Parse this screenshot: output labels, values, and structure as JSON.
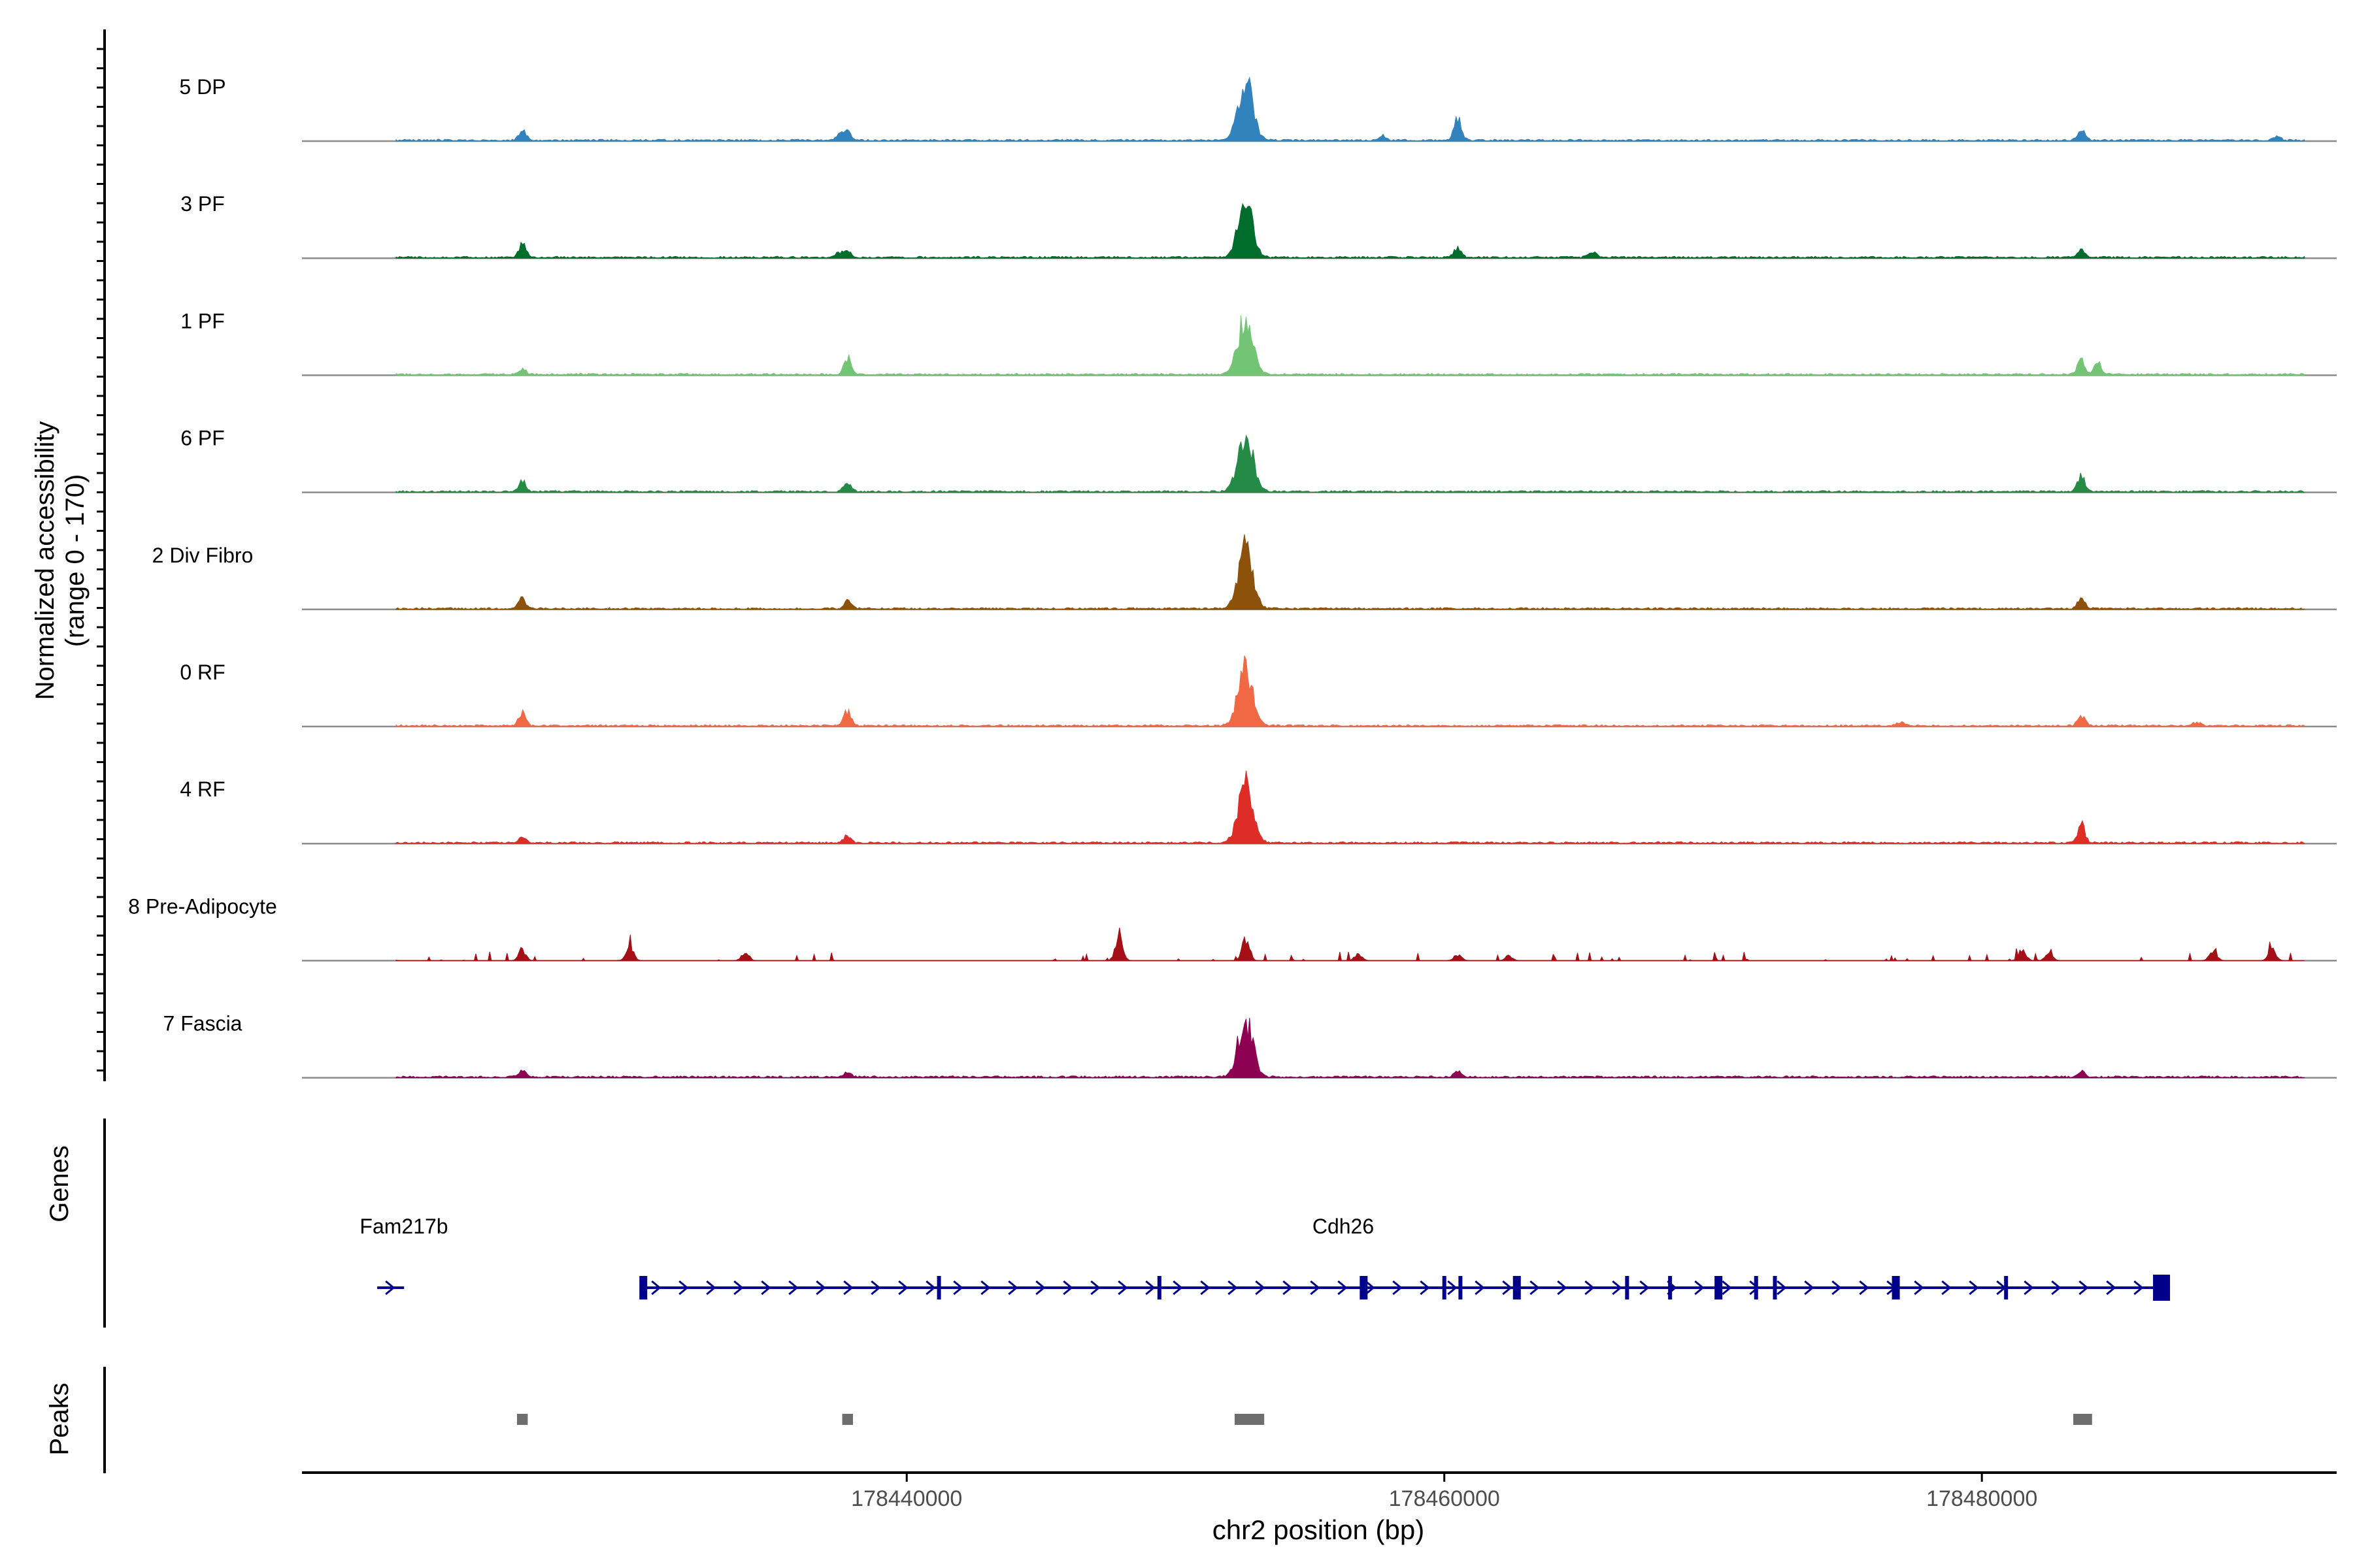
{
  "chart_data": {
    "type": "genome-coverage",
    "title": "",
    "xlabel": "chr2 position (bp)",
    "ylabel": "Normalized accessibility",
    "ylabel_range": "(range 0 - 170)",
    "ylim": [
      0,
      170
    ],
    "xlim": [
      178417500,
      178493200
    ],
    "x_ticks": [
      {
        "value": 178440000,
        "label": "178440000"
      },
      {
        "value": 178460000,
        "label": "178460000"
      },
      {
        "value": 178480000,
        "label": "178480000"
      }
    ],
    "track_start": 178421000,
    "track_end": 178492000,
    "series": [
      {
        "name": "5 DP",
        "color": "#3182BD",
        "peaks": [
          [
            178425700,
            0.2
          ],
          [
            178437500,
            0.1
          ],
          [
            178437800,
            0.14
          ],
          [
            178452600,
            1.0
          ],
          [
            178457700,
            0.08
          ],
          [
            178460500,
            0.38
          ],
          [
            178483700,
            0.2
          ],
          [
            178491000,
            0.06
          ]
        ]
      },
      {
        "name": "3 PF",
        "color": "#006D2C",
        "peaks": [
          [
            178425700,
            0.22
          ],
          [
            178437500,
            0.08
          ],
          [
            178437800,
            0.1
          ],
          [
            178452600,
            1.0
          ],
          [
            178460500,
            0.15
          ],
          [
            178465500,
            0.1
          ],
          [
            178483700,
            0.15
          ]
        ]
      },
      {
        "name": "1 PF",
        "color": "#74C476",
        "peaks": [
          [
            178425700,
            0.1
          ],
          [
            178437800,
            0.3
          ],
          [
            178452600,
            1.0
          ],
          [
            178483700,
            0.25
          ],
          [
            178484300,
            0.2
          ]
        ]
      },
      {
        "name": "6 PF",
        "color": "#238B45",
        "peaks": [
          [
            178425700,
            0.18
          ],
          [
            178437800,
            0.18
          ],
          [
            178452600,
            1.0
          ],
          [
            178483700,
            0.26
          ]
        ]
      },
      {
        "name": "2 Div Fibro",
        "color": "#8C510A",
        "peaks": [
          [
            178425700,
            0.18
          ],
          [
            178437800,
            0.12
          ],
          [
            178452600,
            1.0
          ],
          [
            178483700,
            0.18
          ]
        ]
      },
      {
        "name": "0 RF",
        "color": "#F16944",
        "peaks": [
          [
            178425700,
            0.22
          ],
          [
            178437800,
            0.25
          ],
          [
            178452600,
            1.0
          ],
          [
            178477000,
            0.08
          ],
          [
            178483700,
            0.18
          ],
          [
            178488000,
            0.06
          ]
        ]
      },
      {
        "name": "4 RF",
        "color": "#DE2D26",
        "peaks": [
          [
            178425700,
            0.08
          ],
          [
            178437800,
            0.14
          ],
          [
            178452600,
            1.0
          ],
          [
            178483700,
            0.32
          ]
        ]
      },
      {
        "name": "8 Pre-Adipocyte",
        "color": "#A50F15",
        "peaks": [
          [
            178420700,
            0.14
          ],
          [
            178425700,
            0.18
          ],
          [
            178429700,
            0.25
          ],
          [
            178434000,
            0.15
          ],
          [
            178447900,
            0.45
          ],
          [
            178452600,
            0.4
          ],
          [
            178456800,
            0.12
          ],
          [
            178460500,
            0.1
          ],
          [
            178462400,
            0.08
          ],
          [
            178481500,
            0.2
          ],
          [
            178482500,
            0.15
          ],
          [
            178488600,
            0.18
          ],
          [
            178490800,
            0.2
          ]
        ]
      },
      {
        "name": "7 Fascia",
        "color": "#8E0152",
        "peaks": [
          [
            178425700,
            0.12
          ],
          [
            178437800,
            0.08
          ],
          [
            178452600,
            1.0
          ],
          [
            178460500,
            0.1
          ],
          [
            178483700,
            0.1
          ]
        ]
      }
    ],
    "genes": [
      {
        "name": "Fam217b",
        "start": 178420300,
        "end": 178421300,
        "strand": "+"
      },
      {
        "name": "Cdh26",
        "start": 178430200,
        "end": 178487000,
        "strand": "+",
        "exons": [
          178430200,
          178441200,
          178449400,
          178457000,
          178460000,
          178460600,
          178462700,
          178466800,
          178468400,
          178470200,
          178471600,
          178472300,
          178476800,
          178480900
        ]
      }
    ],
    "peaks": [
      {
        "start": 178425500,
        "end": 178425900
      },
      {
        "start": 178437600,
        "end": 178438000
      },
      {
        "start": 178452200,
        "end": 178453300
      },
      {
        "start": 178483400,
        "end": 178484100
      }
    ],
    "panel_labels": {
      "genes": "Genes",
      "peaks": "Peaks"
    }
  }
}
